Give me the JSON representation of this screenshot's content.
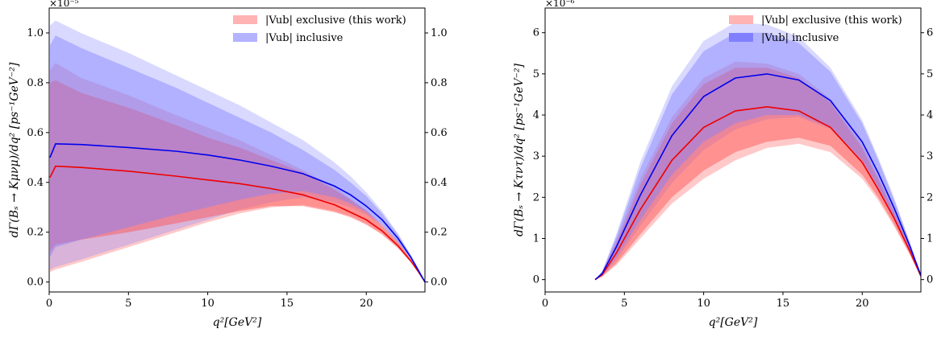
{
  "chart_data": [
    {
      "type": "area",
      "multiplier_label": "×10⁻⁵",
      "xlabel": "q²[GeV²]",
      "ylabel": "dΓ(Bₛ → Kμνμ)/dq² [ps⁻¹GeV⁻²]",
      "xlim": [
        0,
        23.7
      ],
      "ylim": [
        -0.04,
        1.1
      ],
      "xticks": [
        0,
        5,
        10,
        15,
        20
      ],
      "xtick_labels": [
        "0",
        "5",
        "10",
        "15",
        "20"
      ],
      "yticks": [
        0.0,
        0.2,
        0.4,
        0.6,
        0.8,
        1.0
      ],
      "ytick_labels": [
        "0.0",
        "0.2",
        "0.4",
        "0.6",
        "0.8",
        "1.0"
      ],
      "right_axis_mirror": true,
      "legend_position": "top-right",
      "legend": [
        {
          "label": "|Vub| exclusive (this work)",
          "color": "#ffb3b3"
        },
        {
          "label": "|Vub| inclusive",
          "color": "#b3b3ff"
        }
      ],
      "series": [
        {
          "name": "|Vub| exclusive (this work)",
          "color": "#ee0000",
          "band_color": "#ff4d4d",
          "x": [
            0.05,
            0.4,
            2,
            5,
            8,
            10,
            12,
            14,
            16,
            18,
            19,
            20,
            21,
            22,
            22.8,
            23.3,
            23.7
          ],
          "central": [
            0.42,
            0.465,
            0.46,
            0.445,
            0.425,
            0.41,
            0.395,
            0.375,
            0.35,
            0.31,
            0.28,
            0.25,
            0.205,
            0.145,
            0.085,
            0.04,
            0.0
          ],
          "inner_lower": [
            0.12,
            0.15,
            0.17,
            0.2,
            0.235,
            0.26,
            0.285,
            0.305,
            0.305,
            0.28,
            0.26,
            0.23,
            0.19,
            0.135,
            0.08,
            0.035,
            0.0
          ],
          "inner_upper": [
            0.8,
            0.81,
            0.76,
            0.7,
            0.63,
            0.58,
            0.54,
            0.49,
            0.44,
            0.37,
            0.33,
            0.285,
            0.225,
            0.16,
            0.09,
            0.042,
            0.0
          ],
          "outer_lower": [
            0.04,
            0.05,
            0.08,
            0.14,
            0.2,
            0.24,
            0.275,
            0.3,
            0.31,
            0.285,
            0.265,
            0.235,
            0.195,
            0.14,
            0.083,
            0.037,
            0.0
          ],
          "outer_upper": [
            0.85,
            0.88,
            0.82,
            0.75,
            0.67,
            0.62,
            0.57,
            0.51,
            0.45,
            0.38,
            0.335,
            0.29,
            0.23,
            0.165,
            0.095,
            0.045,
            0.0
          ]
        },
        {
          "name": "|Vub| inclusive",
          "color": "#0000ee",
          "band_color": "#8080ff",
          "x": [
            0.05,
            0.4,
            2,
            5,
            8,
            10,
            12,
            14,
            16,
            18,
            19,
            20,
            21,
            22,
            22.8,
            23.3,
            23.7
          ],
          "central": [
            0.5,
            0.555,
            0.552,
            0.54,
            0.525,
            0.51,
            0.49,
            0.465,
            0.435,
            0.385,
            0.35,
            0.305,
            0.25,
            0.175,
            0.1,
            0.045,
            0.0
          ],
          "inner_lower": [
            0.1,
            0.14,
            0.17,
            0.22,
            0.27,
            0.3,
            0.33,
            0.355,
            0.365,
            0.34,
            0.315,
            0.28,
            0.23,
            0.16,
            0.093,
            0.041,
            0.0
          ],
          "inner_upper": [
            0.95,
            0.99,
            0.94,
            0.86,
            0.78,
            0.72,
            0.66,
            0.6,
            0.53,
            0.45,
            0.4,
            0.345,
            0.275,
            0.19,
            0.108,
            0.05,
            0.0
          ],
          "outer_lower": [
            0.05,
            0.06,
            0.09,
            0.15,
            0.21,
            0.25,
            0.29,
            0.32,
            0.34,
            0.32,
            0.3,
            0.27,
            0.225,
            0.158,
            0.092,
            0.04,
            0.0
          ],
          "outer_upper": [
            1.03,
            1.05,
            1.0,
            0.92,
            0.83,
            0.77,
            0.71,
            0.64,
            0.57,
            0.48,
            0.425,
            0.36,
            0.285,
            0.195,
            0.11,
            0.051,
            0.0
          ]
        }
      ]
    },
    {
      "type": "area",
      "multiplier_label": "×10⁻⁶",
      "xlabel": "q²[GeV²]",
      "ylabel": "dΓ(Bₛ → Kτντ)/dq² [ps⁻¹GeV⁻²]",
      "xlim": [
        0,
        23.7
      ],
      "ylim": [
        -0.3,
        6.6
      ],
      "xticks": [
        0,
        5,
        10,
        15,
        20
      ],
      "xtick_labels": [
        "0",
        "5",
        "10",
        "15",
        "20"
      ],
      "yticks": [
        0,
        1,
        2,
        3,
        4,
        5,
        6
      ],
      "ytick_labels": [
        "0",
        "1",
        "2",
        "3",
        "4",
        "5",
        "6"
      ],
      "right_axis_mirror": true,
      "legend_position": "top-right",
      "legend": [
        {
          "label": "|Vub| exclusive (this work)",
          "color": "#ffb3b3"
        },
        {
          "label": "|Vub| inclusive",
          "color": "#8080ff"
        }
      ],
      "series": [
        {
          "name": "|Vub| exclusive (this work)",
          "color": "#ee0000",
          "band_color": "#ff4d4d",
          "x": [
            3.16,
            3.6,
            4.5,
            6,
            8,
            10,
            12,
            14,
            16,
            18,
            20,
            21,
            22,
            23,
            23.7
          ],
          "central": [
            0.0,
            0.12,
            0.65,
            1.7,
            2.9,
            3.7,
            4.1,
            4.2,
            4.1,
            3.7,
            2.85,
            2.2,
            1.5,
            0.7,
            0.08
          ],
          "inner_lower": [
            0.0,
            0.08,
            0.4,
            1.1,
            2.0,
            2.65,
            3.1,
            3.35,
            3.45,
            3.25,
            2.55,
            2.0,
            1.35,
            0.63,
            0.07
          ],
          "inner_upper": [
            0.0,
            0.17,
            0.9,
            2.3,
            3.8,
            4.75,
            5.15,
            5.15,
            4.9,
            4.3,
            3.2,
            2.45,
            1.65,
            0.78,
            0.09
          ],
          "outer_lower": [
            0.0,
            0.07,
            0.35,
            1.0,
            1.85,
            2.45,
            2.9,
            3.2,
            3.3,
            3.1,
            2.45,
            1.93,
            1.3,
            0.6,
            0.07
          ],
          "outer_upper": [
            0.0,
            0.19,
            0.98,
            2.45,
            3.95,
            4.9,
            5.3,
            5.25,
            5.0,
            4.4,
            3.3,
            2.52,
            1.7,
            0.8,
            0.09
          ]
        },
        {
          "name": "|Vub| inclusive",
          "color": "#0000ee",
          "band_color": "#8080ff",
          "x": [
            3.16,
            3.6,
            4.5,
            6,
            8,
            10,
            12,
            14,
            16,
            18,
            20,
            21,
            22,
            23,
            23.7
          ],
          "central": [
            0.0,
            0.15,
            0.8,
            2.05,
            3.5,
            4.45,
            4.9,
            5.0,
            4.85,
            4.35,
            3.35,
            2.6,
            1.75,
            0.82,
            0.1
          ],
          "inner_lower": [
            0.0,
            0.1,
            0.55,
            1.45,
            2.55,
            3.35,
            3.8,
            4.0,
            4.0,
            3.7,
            2.9,
            2.25,
            1.52,
            0.72,
            0.09
          ],
          "inner_upper": [
            0.0,
            0.19,
            1.05,
            2.7,
            4.5,
            5.55,
            6.0,
            6.0,
            5.75,
            5.05,
            3.8,
            2.92,
            1.95,
            0.9,
            0.11
          ],
          "outer_lower": [
            0.0,
            0.09,
            0.48,
            1.3,
            2.35,
            3.15,
            3.65,
            3.9,
            3.95,
            3.65,
            2.85,
            2.22,
            1.5,
            0.7,
            0.09
          ],
          "outer_upper": [
            0.0,
            0.2,
            1.12,
            2.85,
            4.7,
            5.8,
            6.25,
            6.2,
            5.9,
            5.15,
            3.88,
            2.98,
            2.0,
            0.92,
            0.11
          ]
        }
      ]
    }
  ]
}
